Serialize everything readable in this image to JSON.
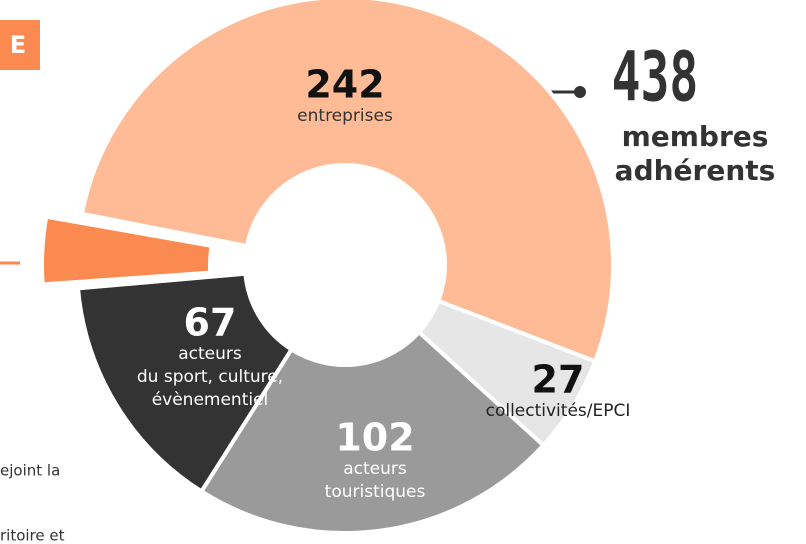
{
  "chart_data": {
    "type": "donut",
    "categories": [
      [
        "entreprises"
      ],
      [
        "collectivités/EPCI"
      ],
      [
        "acteurs",
        "touristiques"
      ],
      [
        "acteurs",
        "du sport, culture,",
        "évènementiel"
      ]
    ],
    "values": [
      242,
      27,
      102,
      67
    ],
    "colors": [
      "#ffbb96",
      "#e6e6e6",
      "#9a9a9a",
      "#333333"
    ],
    "total": 438,
    "total_label": [
      "membres",
      "adhérents"
    ]
  },
  "page": {
    "badge": "E",
    "text_fragments": [
      "ejoint la",
      "ritoire et"
    ]
  }
}
